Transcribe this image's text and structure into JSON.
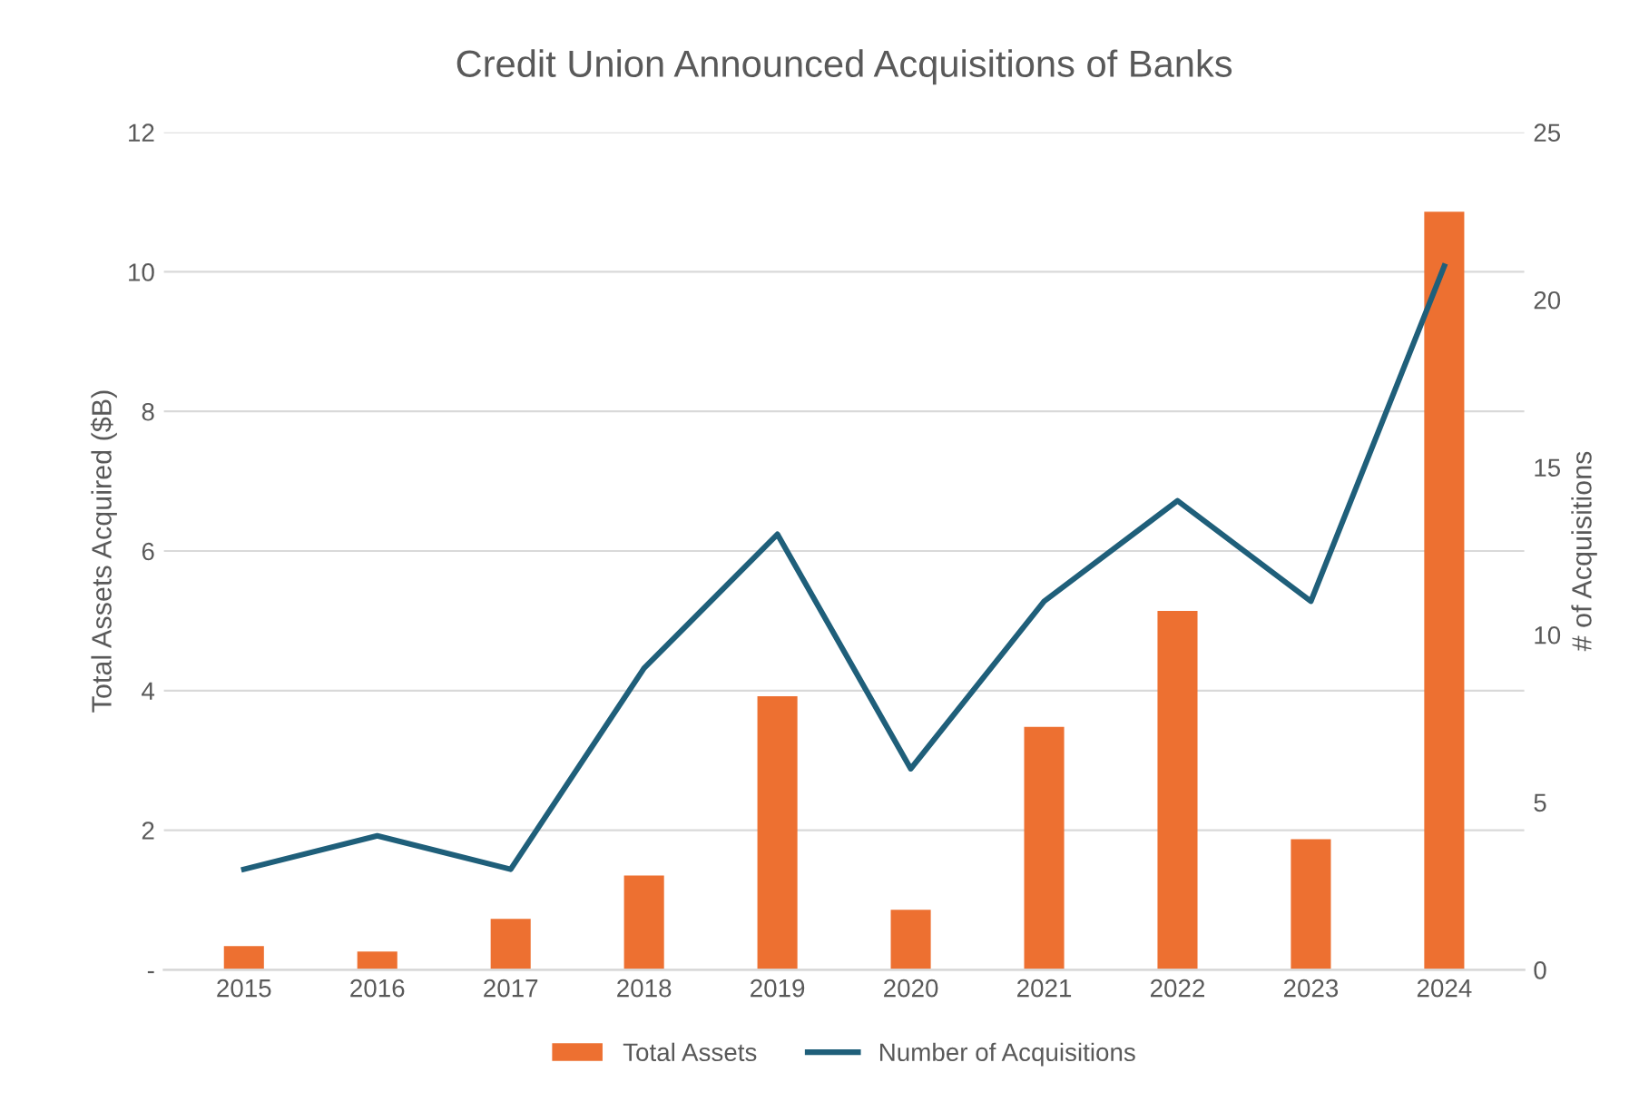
{
  "chart_data": {
    "type": "bar",
    "title": "Credit Union Announced Acquisitions of Banks",
    "ylabel": "Total Assets Acquired ($B)",
    "y2label": "# of Acquisitions",
    "categories": [
      "2015",
      "2016",
      "2017",
      "2018",
      "2019",
      "2020",
      "2021",
      "2022",
      "2023",
      "2024"
    ],
    "series": [
      {
        "name": "Total Assets",
        "color": "#ed7031",
        "values": [
          0.34,
          0.26,
          0.73,
          1.35,
          3.92,
          0.86,
          3.48,
          5.14,
          1.87,
          10.86
        ]
      },
      {
        "name": "Number of Acquisitions",
        "type": "line",
        "axis": "y2",
        "color": "#1f5f7a",
        "values": [
          3,
          4,
          3,
          9,
          13,
          6,
          11,
          14,
          11,
          21
        ]
      }
    ],
    "ylim": [
      0,
      12
    ],
    "yticks": [
      {
        "value": 0,
        "label": "-"
      },
      2,
      4,
      6,
      8,
      10,
      12
    ],
    "y2lim": [
      0,
      25
    ],
    "y2ticks": [
      0,
      5,
      10,
      15,
      20,
      25
    ],
    "grid": "y",
    "legend": "bottom",
    "marker": "none",
    "line_style": "solid"
  }
}
